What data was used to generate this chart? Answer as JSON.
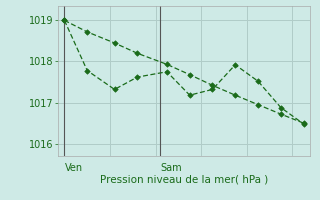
{
  "background_color": "#ceeae6",
  "line_color": "#1a6b1a",
  "grid_color": "#b0ccc8",
  "axis_color": "#999999",
  "title": "Pression niveau de la mer( hPa )",
  "ylim": [
    1015.7,
    1019.35
  ],
  "yticks": [
    1016,
    1017,
    1018,
    1019
  ],
  "line1_x": [
    0,
    1.0,
    2.2,
    3.2,
    4.5,
    5.5,
    6.5,
    7.5,
    8.5,
    9.5,
    10.5
  ],
  "line1_y": [
    1019.0,
    1018.72,
    1018.45,
    1018.2,
    1017.93,
    1017.68,
    1017.42,
    1017.18,
    1016.95,
    1016.72,
    1016.5
  ],
  "line2_x": [
    0,
    1.0,
    2.2,
    3.2,
    4.5,
    5.5,
    6.5,
    7.5,
    8.5,
    9.5,
    10.5
  ],
  "line2_y": [
    1019.0,
    1017.78,
    1017.32,
    1017.62,
    1017.75,
    1017.18,
    1017.32,
    1017.92,
    1017.52,
    1016.88,
    1016.48
  ],
  "ven_x": 0.0,
  "sam_x": 4.2,
  "xlim": [
    -0.3,
    10.8
  ]
}
